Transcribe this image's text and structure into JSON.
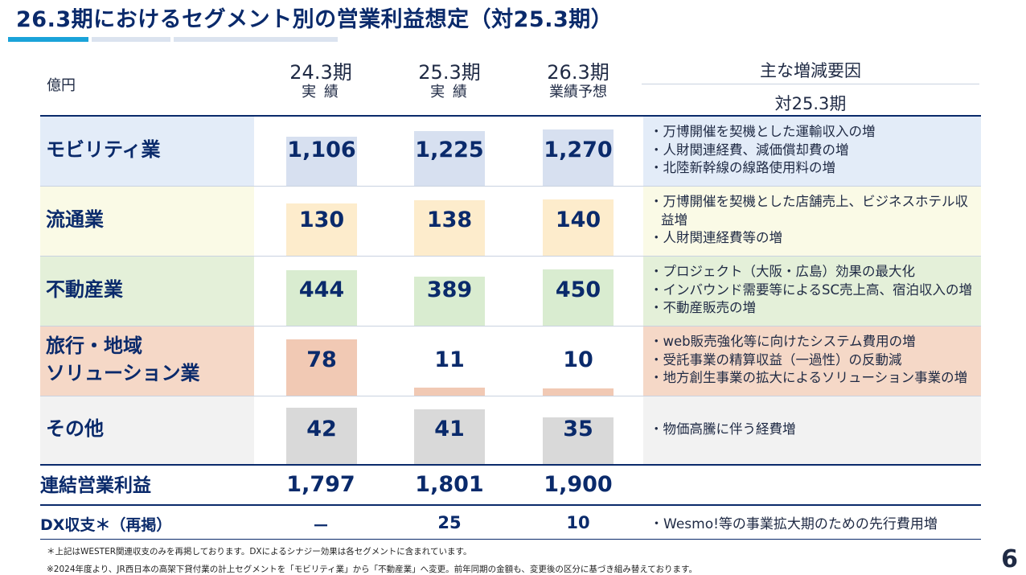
{
  "title": "26.3期におけるセグメント別の営業利益想定（対25.3期）",
  "colors": {
    "navy": "#0a2a6b",
    "accent": "#1aa3d9",
    "mobility": "#e3ecf8",
    "retail": "#fafae6",
    "realestate": "#e4f0d9",
    "travel": "#f5d8c7",
    "other": "#f2f2f2"
  },
  "header": {
    "unit": "億円",
    "years": [
      {
        "year": "24.3期",
        "sub": "実 績"
      },
      {
        "year": "25.3期",
        "sub": "実 績"
      },
      {
        "year": "26.3期",
        "sub": "業績予想"
      }
    ],
    "factors_title": "主な増減要因",
    "factors_sub": "対25.3期"
  },
  "rows": [
    {
      "label_lines": [
        "モビリティ業"
      ],
      "values": [
        "1,106",
        "1,225",
        "1,270"
      ],
      "amounts": [
        1106,
        1225,
        1270
      ],
      "factors": [
        "・万博開催を契機とした運輸収入の増",
        "・人財関連経費、減価償却費の増",
        "・北陸新幹線の線路使用料の増"
      ]
    },
    {
      "label_lines": [
        "流通業"
      ],
      "values": [
        "130",
        "138",
        "140"
      ],
      "amounts": [
        130,
        138,
        140
      ],
      "factors": [
        "・万博開催を契機とした店舗売上、ビジネスホテル収",
        "益増",
        "・人財関連経費等の増"
      ]
    },
    {
      "label_lines": [
        "不動産業"
      ],
      "values": [
        "444",
        "389",
        "450"
      ],
      "amounts": [
        444,
        389,
        450
      ],
      "factors": [
        "・プロジェクト（大阪・広島）効果の最大化",
        "・インバウンド需要等によるSC売上高、宿泊収入の増",
        "・不動産販売の増"
      ]
    },
    {
      "label_lines": [
        "旅行・地域",
        "ソリューション業"
      ],
      "values": [
        "78",
        "11",
        "10"
      ],
      "amounts": [
        78,
        11,
        10
      ],
      "factors": [
        "・web販売強化等に向けたシステム費用の増",
        "・受託事業の精算収益（一過性）の反動減",
        "・地方創生事業の拡大によるソリューション事業の増"
      ]
    },
    {
      "label_lines": [
        "その他"
      ],
      "values": [
        "42",
        "41",
        "35"
      ],
      "amounts": [
        42,
        41,
        35
      ],
      "factors": [
        "・物価高騰に伴う経費増"
      ]
    }
  ],
  "total": {
    "label": "連結営業利益",
    "values": [
      "1,797",
      "1,801",
      "1,900"
    ]
  },
  "dx": {
    "label": "DX収支＊（再掲）",
    "values": [
      "－",
      "25",
      "10"
    ],
    "factor": "・Wesmo!等の事業拡大期のための先行費用増"
  },
  "notes": [
    "＊上記はWESTER関連収支のみを再掲しております。DXによるシナジー効果は各セグメントに含まれています。",
    "※2024年度より、JR西日本の高架下貸付業の計上セグメントを「モビリティ業」から「不動産業」へ変更。前年同期の金額も、変更後の区分に基づき組み替えております。"
  ],
  "page_number": "6"
}
